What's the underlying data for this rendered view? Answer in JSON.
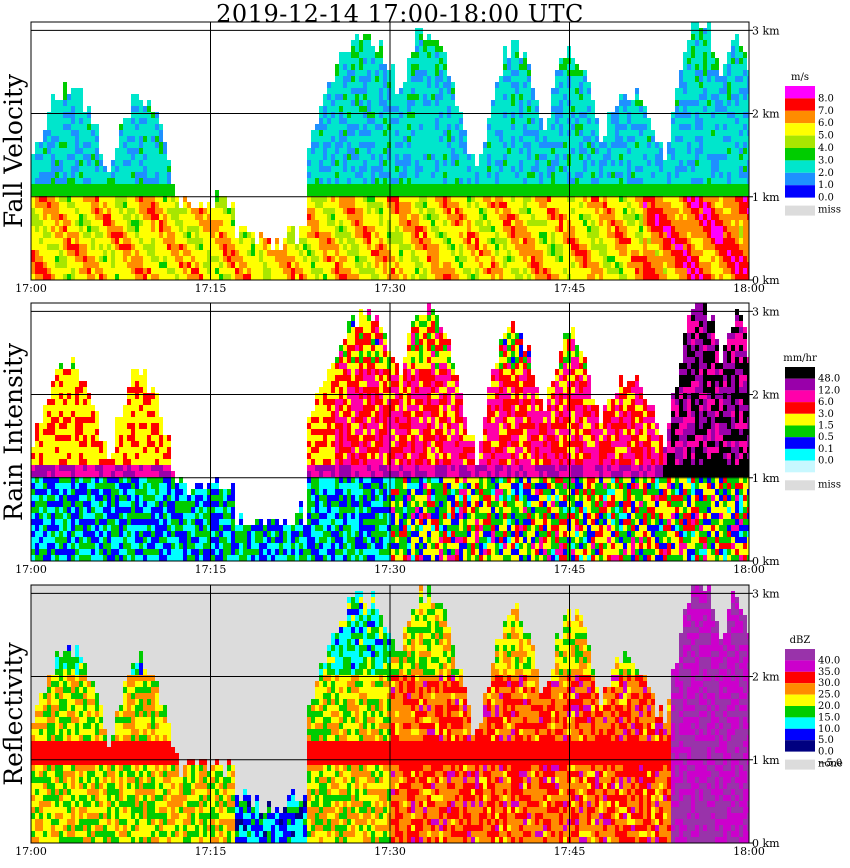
{
  "title": "2019-12-14   17:00-18:00 UTC",
  "x_ticks": [
    "17:00",
    "17:15",
    "17:30",
    "17:45",
    "18:00"
  ],
  "y_ticks": [
    "0 km",
    "1 km",
    "2 km",
    "3 km"
  ],
  "chart_data": [
    {
      "type": "heatmap",
      "title": "Fall Velocity",
      "unit": "m/s",
      "x_range": [
        "17:00",
        "18:00"
      ],
      "y_range_km": [
        0,
        3.1
      ],
      "legend_levels": [
        "8.0",
        "7.0",
        "6.0",
        "5.0",
        "4.0",
        "3.0",
        "2.0",
        "1.0",
        "0.0"
      ],
      "legend_colors": [
        "#ff00ff",
        "#ff0000",
        "#ff8c00",
        "#ffff00",
        "#a8e600",
        "#00cc00",
        "#00e6cc",
        "#1e90ff",
        "#0000ff"
      ],
      "missing_label": "miss",
      "missing_color": "#dcdcdc"
    },
    {
      "type": "heatmap",
      "title": "Rain Intensity",
      "unit": "mm/hr",
      "x_range": [
        "17:00",
        "18:00"
      ],
      "y_range_km": [
        0,
        3.1
      ],
      "legend_levels": [
        "48.0",
        "12.0",
        "6.0",
        "3.0",
        "1.5",
        "0.5",
        "0.1",
        "0.0"
      ],
      "legend_colors": [
        "#000000",
        "#9900aa",
        "#ff00aa",
        "#ff0000",
        "#ffff00",
        "#00cc00",
        "#0000ff",
        "#00ffff",
        "#c8f8ff"
      ],
      "missing_label": "miss",
      "missing_color": "#dcdcdc"
    },
    {
      "type": "heatmap",
      "title": "Reflectivity",
      "unit": "dBZ",
      "x_range": [
        "17:00",
        "18:00"
      ],
      "y_range_km": [
        0,
        3.1
      ],
      "legend_levels": [
        "40.0",
        "35.0",
        "30.0",
        "25.0",
        "20.0",
        "15.0",
        "10.0",
        "5.0",
        "0.0",
        "−5.0"
      ],
      "legend_colors": [
        "#9933aa",
        "#cc00cc",
        "#ff0000",
        "#ff8c00",
        "#ffff00",
        "#00cc00",
        "#00ffff",
        "#0000ff",
        "#000080"
      ],
      "missing_label": "none",
      "missing_color": "#dcdcdc"
    }
  ]
}
